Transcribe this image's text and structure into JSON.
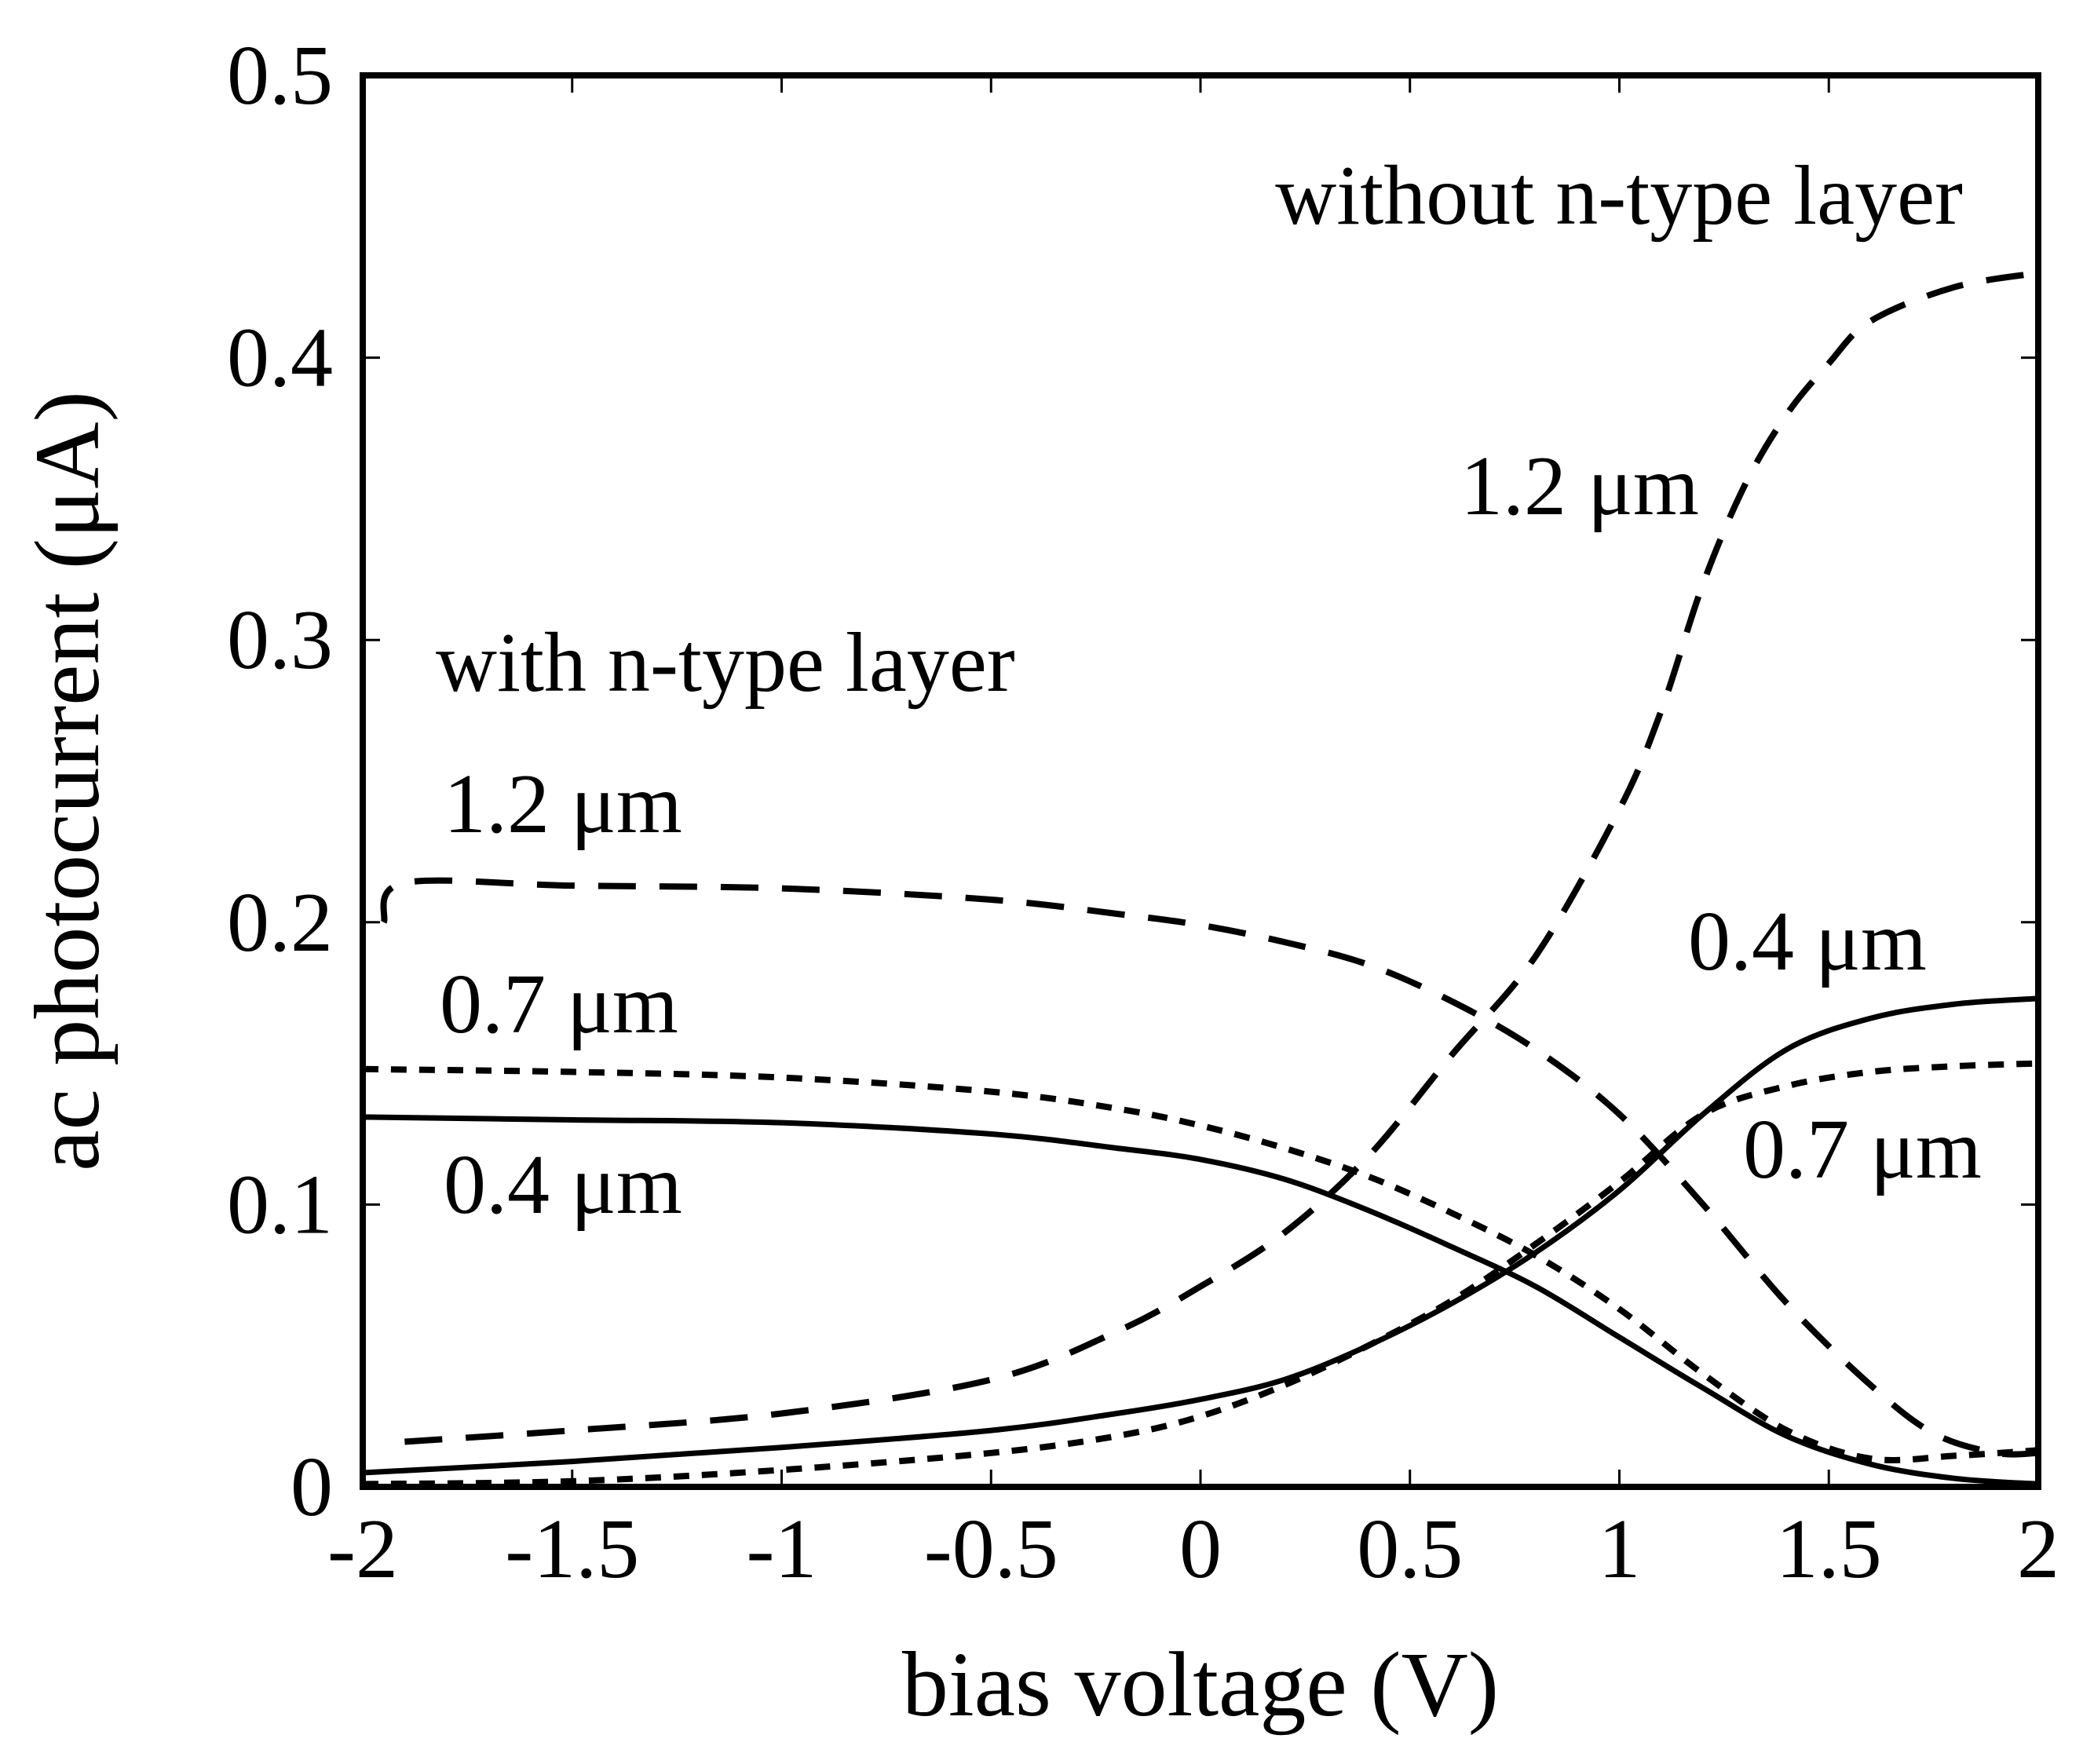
{
  "chart_data": {
    "type": "line",
    "xlabel": "bias voltage (V)",
    "ylabel": "ac photocurrent (μA)",
    "xlim": [
      -2,
      2
    ],
    "ylim": [
      0,
      0.5
    ],
    "xticks": [
      -2,
      -1.5,
      -1,
      -0.5,
      0,
      0.5,
      1,
      1.5,
      2
    ],
    "yticks": [
      0,
      0.1,
      0.2,
      0.3,
      0.4,
      0.5
    ],
    "xtick_labels": [
      "-2",
      "-1.5",
      "-1",
      "-0.5",
      "0",
      "0.5",
      "1",
      "1.5",
      "2"
    ],
    "ytick_labels": [
      "0",
      "0.1",
      "0.2",
      "0.3",
      "0.4",
      "0.5"
    ],
    "grid": false,
    "annotations": [
      {
        "id": "without-n-type-layer",
        "text": "without n-type layer"
      },
      {
        "id": "with-n-type-layer",
        "text": "with n-type layer"
      },
      {
        "id": "without-1-2",
        "text": "1.2 μm"
      },
      {
        "id": "with-1-2",
        "text": "1.2 μm"
      },
      {
        "id": "with-0-7",
        "text": "0.7 μm"
      },
      {
        "id": "with-0-4",
        "text": "0.4 μm"
      },
      {
        "id": "without-0-4",
        "text": "0.4 μm"
      },
      {
        "id": "without-0-7",
        "text": "0.7 μm"
      }
    ],
    "series": [
      {
        "name": "with n-type layer, 1.2 μm",
        "style": "long-dash",
        "x": [
          -1.95,
          -1.9,
          -1.5,
          -1.0,
          -0.5,
          -0.2,
          0.0,
          0.2,
          0.4,
          0.6,
          0.8,
          1.0,
          1.2,
          1.4,
          1.6,
          1.75,
          1.9,
          2.0
        ],
        "y": [
          0.2,
          0.214,
          0.213,
          0.212,
          0.208,
          0.203,
          0.199,
          0.193,
          0.185,
          0.172,
          0.155,
          0.132,
          0.1,
          0.065,
          0.036,
          0.019,
          0.012,
          0.012
        ]
      },
      {
        "name": "with n-type layer, 0.7 μm",
        "style": "short-dash",
        "x": [
          -2.0,
          -1.5,
          -1.0,
          -0.5,
          -0.2,
          0.0,
          0.2,
          0.4,
          0.6,
          0.8,
          1.0,
          1.2,
          1.4,
          1.6,
          1.8,
          2.0
        ],
        "y": [
          0.148,
          0.147,
          0.145,
          0.14,
          0.134,
          0.128,
          0.12,
          0.11,
          0.097,
          0.082,
          0.063,
          0.04,
          0.02,
          0.01,
          0.011,
          0.013
        ]
      },
      {
        "name": "with n-type layer, 0.4 μm",
        "style": "solid",
        "x": [
          -2.0,
          -1.5,
          -1.0,
          -0.5,
          -0.2,
          0.0,
          0.2,
          0.4,
          0.6,
          0.8,
          1.0,
          1.2,
          1.4,
          1.6,
          1.8,
          2.0
        ],
        "y": [
          0.131,
          0.13,
          0.129,
          0.125,
          0.12,
          0.116,
          0.109,
          0.098,
          0.085,
          0.071,
          0.053,
          0.035,
          0.018,
          0.008,
          0.003,
          0.001
        ]
      },
      {
        "name": "without n-type layer, 1.2 μm",
        "style": "long-dash",
        "x": [
          -1.9,
          -1.5,
          -1.0,
          -0.5,
          -0.2,
          0.0,
          0.2,
          0.4,
          0.6,
          0.8,
          1.0,
          1.1,
          1.2,
          1.3,
          1.4,
          1.5,
          1.6,
          1.8,
          2.0
        ],
        "y": [
          0.016,
          0.02,
          0.026,
          0.038,
          0.055,
          0.071,
          0.09,
          0.117,
          0.153,
          0.188,
          0.24,
          0.275,
          0.32,
          0.355,
          0.38,
          0.398,
          0.413,
          0.425,
          0.43
        ]
      },
      {
        "name": "without n-type layer, 0.7 μm",
        "style": "short-dash",
        "x": [
          -2.0,
          -1.5,
          -1.0,
          -0.5,
          -0.2,
          0.0,
          0.2,
          0.4,
          0.6,
          0.8,
          1.0,
          1.2,
          1.4,
          1.6,
          1.8,
          2.0
        ],
        "y": [
          0.001,
          0.002,
          0.006,
          0.012,
          0.018,
          0.025,
          0.036,
          0.05,
          0.066,
          0.086,
          0.108,
          0.132,
          0.142,
          0.147,
          0.149,
          0.15
        ]
      },
      {
        "name": "without n-type layer, 0.4 μm",
        "style": "solid",
        "x": [
          -2.0,
          -1.5,
          -1.0,
          -0.5,
          -0.2,
          0.0,
          0.2,
          0.4,
          0.6,
          0.8,
          1.0,
          1.2,
          1.4,
          1.6,
          1.8,
          2.0
        ],
        "y": [
          0.005,
          0.009,
          0.014,
          0.02,
          0.026,
          0.031,
          0.038,
          0.05,
          0.065,
          0.083,
          0.105,
          0.132,
          0.155,
          0.166,
          0.171,
          0.173
        ]
      }
    ]
  }
}
